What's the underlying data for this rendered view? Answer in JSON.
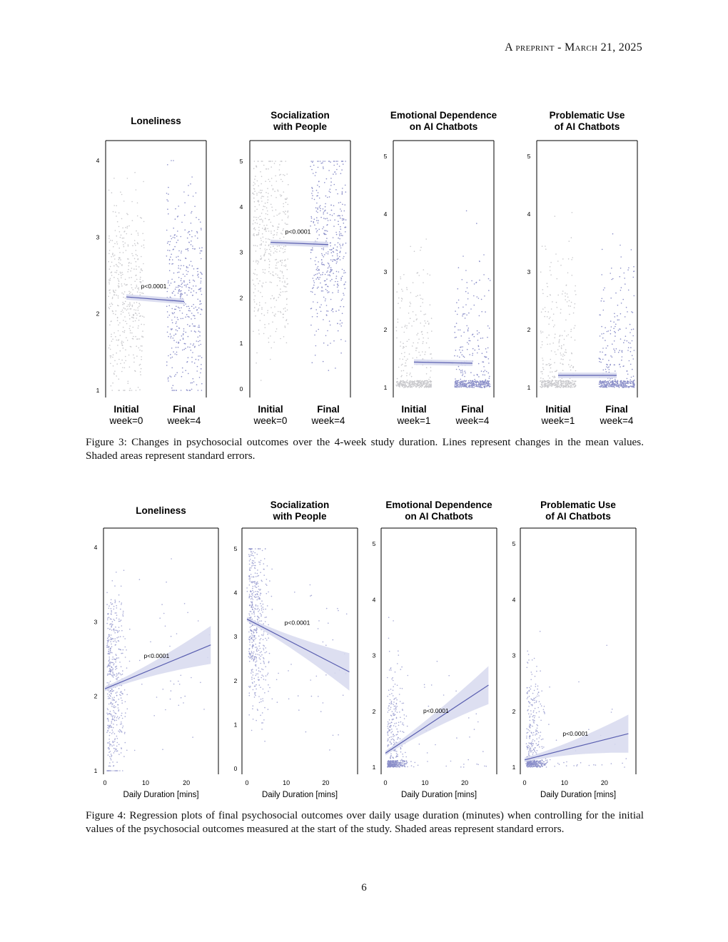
{
  "header": {
    "text": "A preprint - March 21, 2025"
  },
  "figure3": {
    "caption": "Figure 3: Changes in psychosocial outcomes over the 4-week study duration. Lines represent changes in the mean values. Shaded areas represent standard errors."
  },
  "figure4": {
    "caption": "Figure 4: Regression plots of final psychosocial outcomes over daily usage duration (minutes) when controlling for the initial values of the psychosocial outcomes measured at the start of the study. Shaded areas represent standard errors."
  },
  "page_number": "6",
  "colors": {
    "initial_points": "#c8c8cc",
    "final_points": "#8a8ec8",
    "line": "#5a5fb0",
    "band": "#d7d9ee"
  },
  "chart_data": [
    {
      "figure": "Figure 3",
      "type": "scatter",
      "title_lines": [
        "Loneliness"
      ],
      "categories": [
        {
          "name": "Initial",
          "sub": "week=0"
        },
        {
          "name": "Final",
          "sub": "week=4"
        }
      ],
      "ylim": [
        1,
        4
      ],
      "yticks": [
        1,
        2,
        3,
        4
      ],
      "mean_values": [
        2.22,
        2.16
      ],
      "p_label": "p<0.0001"
    },
    {
      "figure": "Figure 3",
      "type": "scatter",
      "title_lines": [
        "Socialization",
        "with People"
      ],
      "categories": [
        {
          "name": "Initial",
          "sub": "week=0"
        },
        {
          "name": "Final",
          "sub": "week=4"
        }
      ],
      "ylim": [
        0,
        5
      ],
      "yticks": [
        0,
        1,
        2,
        3,
        4,
        5
      ],
      "mean_values": [
        3.22,
        3.17
      ],
      "p_label": "p<0.0001"
    },
    {
      "figure": "Figure 3",
      "type": "scatter",
      "title_lines": [
        "Emotional Dependence",
        "on AI Chatbots"
      ],
      "categories": [
        {
          "name": "Initial",
          "sub": "week=1"
        },
        {
          "name": "Final",
          "sub": "week=4"
        }
      ],
      "ylim": [
        1,
        5
      ],
      "yticks": [
        1,
        2,
        3,
        4,
        5
      ],
      "mean_values": [
        1.44,
        1.42
      ],
      "p_label": ""
    },
    {
      "figure": "Figure 3",
      "type": "scatter",
      "title_lines": [
        "Problematic Use",
        "of AI Chatbots"
      ],
      "categories": [
        {
          "name": "Initial",
          "sub": "week=1"
        },
        {
          "name": "Final",
          "sub": "week=4"
        }
      ],
      "ylim": [
        1,
        5
      ],
      "yticks": [
        1,
        2,
        3,
        4,
        5
      ],
      "mean_values": [
        1.21,
        1.21
      ],
      "p_label": ""
    },
    {
      "figure": "Figure 4",
      "type": "scatter",
      "title_lines": [
        "Loneliness"
      ],
      "xlabel": "Daily Duration [mins]",
      "xticks": [
        0,
        10,
        20
      ],
      "xlim": [
        0,
        27
      ],
      "ylim": [
        1,
        4
      ],
      "yticks": [
        1,
        2,
        3,
        4
      ],
      "fit": {
        "x": [
          0,
          26
        ],
        "y": [
          2.1,
          2.69
        ]
      },
      "p_label": "p<0.0001"
    },
    {
      "figure": "Figure 4",
      "type": "scatter",
      "title_lines": [
        "Socialization",
        "with People"
      ],
      "xlabel": "Daily Duration [mins]",
      "xticks": [
        0,
        10,
        20
      ],
      "xlim": [
        0,
        27
      ],
      "ylim": [
        0,
        5
      ],
      "yticks": [
        0,
        1,
        2,
        3,
        4,
        5
      ],
      "fit": {
        "x": [
          0,
          26
        ],
        "y": [
          3.4,
          2.2
        ]
      },
      "p_label": "p<0.0001"
    },
    {
      "figure": "Figure 4",
      "type": "scatter",
      "title_lines": [
        "Emotional Dependence",
        "on AI Chatbots"
      ],
      "xlabel": "Daily Duration [mins]",
      "xticks": [
        0,
        10,
        20
      ],
      "xlim": [
        0,
        27
      ],
      "ylim": [
        1,
        5
      ],
      "yticks": [
        1,
        2,
        3,
        4,
        5
      ],
      "fit": {
        "x": [
          0,
          26
        ],
        "y": [
          1.25,
          2.47
        ]
      },
      "p_label": "p<0.0001"
    },
    {
      "figure": "Figure 4",
      "type": "scatter",
      "title_lines": [
        "Problematic Use",
        "of AI Chatbots"
      ],
      "xlabel": "Daily Duration [mins]",
      "xticks": [
        0,
        10,
        20
      ],
      "xlim": [
        0,
        27
      ],
      "ylim": [
        1,
        5
      ],
      "yticks": [
        1,
        2,
        3,
        4,
        5
      ],
      "fit": {
        "x": [
          0,
          26
        ],
        "y": [
          1.13,
          1.6
        ]
      },
      "p_label": "p<0.0001"
    }
  ]
}
